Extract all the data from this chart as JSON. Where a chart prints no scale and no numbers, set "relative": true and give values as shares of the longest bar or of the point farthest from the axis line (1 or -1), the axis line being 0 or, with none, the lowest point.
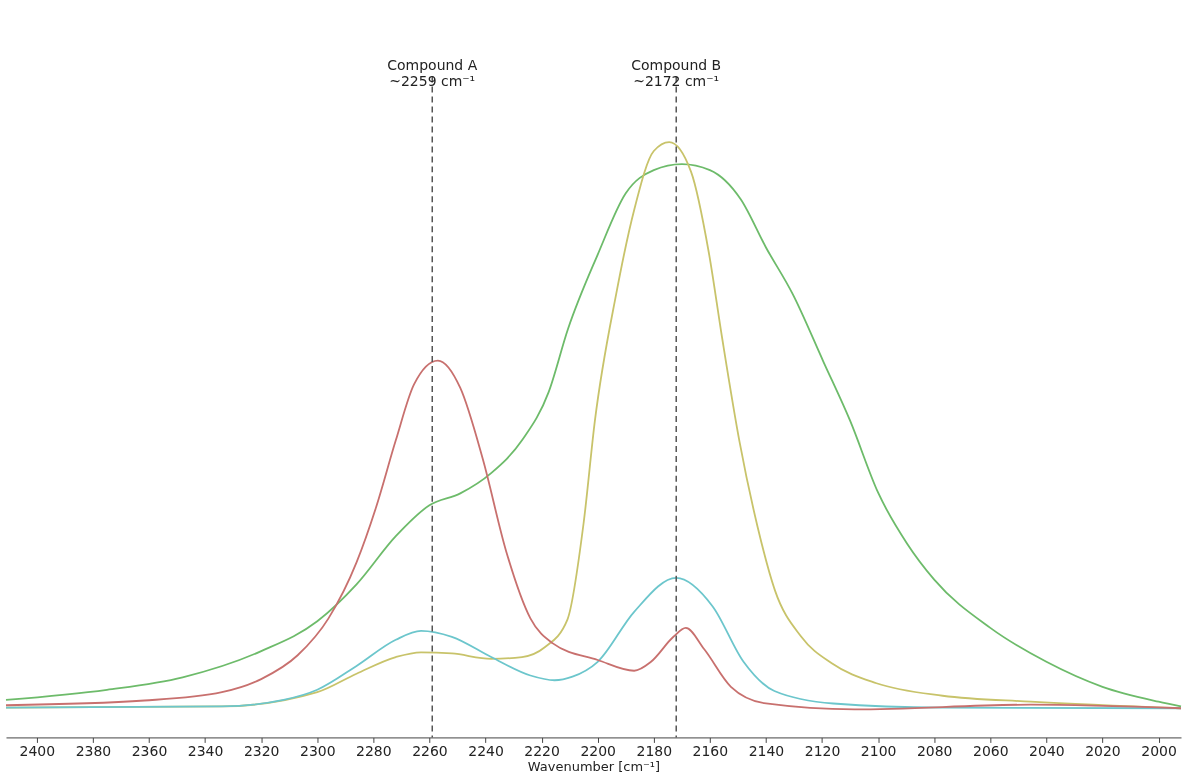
{
  "chart_data": {
    "type": "line",
    "relative": true,
    "xlabel": "Wavenumber [cm⁻¹]",
    "xlim": [
      2411,
      1992
    ],
    "xticks": [
      2400,
      2380,
      2360,
      2340,
      2320,
      2300,
      2280,
      2260,
      2240,
      2220,
      2200,
      2180,
      2160,
      2140,
      2120,
      2100,
      2080,
      2060,
      2040,
      2020,
      2000
    ],
    "grid": false,
    "legend": false,
    "line_style": "solid",
    "marker": "none",
    "ref_lines": [
      {
        "axis": "x",
        "value": 2259,
        "label": "Compound A\n~2259 cm⁻¹",
        "color": "#555555",
        "line_style": "dashed"
      },
      {
        "axis": "x",
        "value": 2172,
        "label": "Compound B\n~2172 cm⁻¹",
        "color": "#555555",
        "line_style": "dashed"
      }
    ],
    "series": [
      {
        "color": "#6dbb6a",
        "x": [
          2411,
          2375,
          2348,
          2320,
          2300,
          2286,
          2272,
          2260,
          2249,
          2238,
          2227,
          2217.5,
          2210.6,
          2200,
          2190,
          2180,
          2170,
          2160,
          2149,
          2140,
          2130.5,
          2119.5,
          2110,
          2100,
          2089.6,
          2080,
          2060,
          2040,
          2020,
          2000,
          1992
        ],
        "values": [
          0.063,
          0.08,
          0.101,
          0.145,
          0.195,
          0.257,
          0.338,
          0.39,
          0.41,
          0.444,
          0.499,
          0.58,
          0.686,
          0.811,
          0.914,
          0.953,
          0.963,
          0.953,
          0.904,
          0.823,
          0.745,
          0.631,
          0.532,
          0.411,
          0.325,
          0.265,
          0.184,
          0.127,
          0.085,
          0.06,
          0.052
        ]
      },
      {
        "color": "#c8c36a",
        "x": [
          2411,
          2334,
          2300,
          2286,
          2272,
          2263,
          2252,
          2238,
          2227,
          2219,
          2210.8,
          2205,
          2201,
          2193.4,
          2187,
          2180,
          2174.5,
          2166.7,
          2160.4,
          2155.7,
          2149.4,
          2143,
          2136.8,
          2127.4,
          2116.4,
          2100.6,
          2077,
          2045.6,
          1992
        ],
        "values": [
          0.05,
          0.052,
          0.076,
          0.107,
          0.135,
          0.143,
          0.141,
          0.132,
          0.135,
          0.151,
          0.198,
          0.361,
          0.532,
          0.745,
          0.886,
          0.985,
          1.0,
          0.95,
          0.815,
          0.673,
          0.496,
          0.354,
          0.247,
          0.169,
          0.124,
          0.091,
          0.07,
          0.06,
          0.049
        ]
      },
      {
        "color": "#6cc6cc",
        "x": [
          2411,
          2334,
          2312,
          2300,
          2286,
          2272,
          2263,
          2252,
          2238,
          2224,
          2215.4,
          2209,
          2200,
          2187,
          2172,
          2159,
          2148,
          2137,
          2116,
          2077,
          1992
        ],
        "values": [
          0.05,
          0.052,
          0.063,
          0.08,
          0.12,
          0.164,
          0.179,
          0.169,
          0.135,
          0.104,
          0.096,
          0.102,
          0.127,
          0.211,
          0.268,
          0.22,
          0.127,
          0.078,
          0.057,
          0.05,
          0.049
        ]
      },
      {
        "color": "#c8706e",
        "x": [
          2411,
          2361.6,
          2334,
          2320,
          2307,
          2296,
          2286,
          2279,
          2272,
          2265.5,
          2257,
          2249,
          2241,
          2232.6,
          2224,
          2216,
          2200,
          2187,
          2181,
          2173,
          2168.6,
          2162,
          2152.5,
          2140,
          2108.5,
          2045.6,
          1992
        ],
        "values": [
          0.054,
          0.062,
          0.076,
          0.098,
          0.138,
          0.2,
          0.294,
          0.387,
          0.499,
          0.593,
          0.633,
          0.587,
          0.468,
          0.312,
          0.2,
          0.158,
          0.13,
          0.112,
          0.127,
          0.169,
          0.184,
          0.148,
          0.085,
          0.057,
          0.047,
          0.055,
          0.049
        ]
      }
    ]
  }
}
